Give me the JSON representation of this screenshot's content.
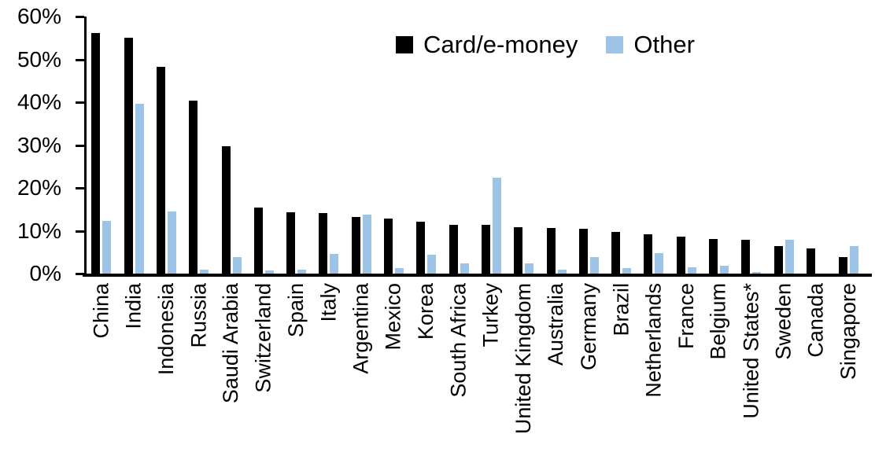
{
  "chart_data": {
    "type": "bar",
    "title": "",
    "xlabel": "",
    "ylabel": "",
    "categories": [
      "China",
      "India",
      "Indonesia",
      "Russia",
      "Saudi Arabia",
      "Switzerland",
      "Spain",
      "Italy",
      "Argentina",
      "Mexico",
      "Korea",
      "South Africa",
      "Turkey",
      "United Kingdom",
      "Australia",
      "Germany",
      "Brazil",
      "Netherlands",
      "France",
      "Belgium",
      "United States*",
      "Sweden",
      "Canada",
      "Singapore"
    ],
    "series": [
      {
        "name": "Card/e-money",
        "color": "#000000",
        "values": [
          56.2,
          55.0,
          48.2,
          40.4,
          29.8,
          15.4,
          14.3,
          14.1,
          13.3,
          12.9,
          12.2,
          11.4,
          11.4,
          10.9,
          10.6,
          10.5,
          9.8,
          9.2,
          8.6,
          8.0,
          7.8,
          6.4,
          5.8,
          3.9
        ]
      },
      {
        "name": "Other",
        "color": "#9DC3E6",
        "values": [
          12.3,
          39.6,
          14.5,
          1.0,
          3.9,
          0.7,
          1.0,
          4.5,
          13.7,
          1.3,
          4.4,
          2.4,
          22.4,
          2.3,
          0.9,
          3.9,
          1.2,
          4.7,
          1.4,
          1.9,
          0.4,
          7.9,
          0.0,
          6.5
        ]
      }
    ],
    "ylim": [
      0,
      60
    ],
    "ytick_step": 10,
    "ytick_labels": [
      "0%",
      "10%",
      "20%",
      "30%",
      "40%",
      "50%",
      "60%"
    ],
    "legend_position": "top-center",
    "grid": false,
    "x_labels_rotated_degrees": 90
  }
}
